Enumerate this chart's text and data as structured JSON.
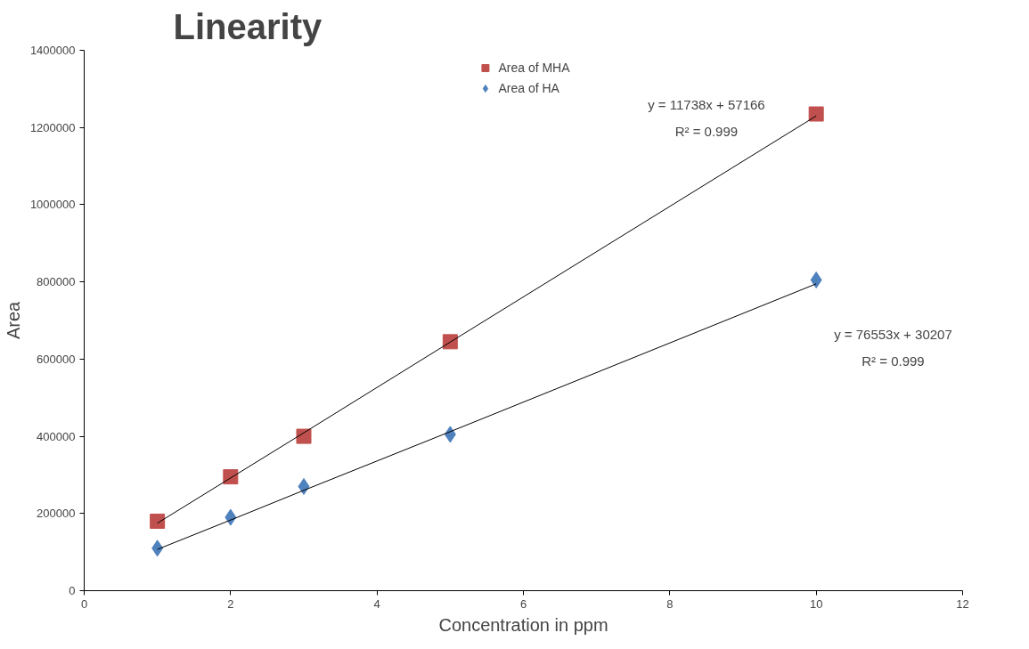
{
  "chart_data": {
    "type": "scatter",
    "title": "Linearity",
    "xlabel": "Concentration in ppm",
    "ylabel": "Area",
    "x": [
      1,
      2,
      3,
      5,
      10
    ],
    "series": [
      {
        "name": "Area of MHA",
        "color": "#c0504d",
        "marker": "square",
        "values": [
          180000,
          295000,
          400000,
          645000,
          1235000
        ]
      },
      {
        "name": "Area of HA",
        "color": "#4f81bd",
        "marker": "diamond",
        "values": [
          110000,
          190000,
          270000,
          405000,
          805000
        ]
      },
      {
        "type": "line",
        "color": "#000000",
        "values": [
          175000,
          292000,
          409000,
          644000,
          1230000
        ]
      },
      {
        "type": "line",
        "color": "#000000",
        "values": [
          107000,
          183000,
          260000,
          412000,
          795000
        ]
      }
    ],
    "annotations": [
      "y = 11738x + 57166",
      "R² = 0.999",
      "y = 76553x + 30207",
      "R² = 0.999"
    ],
    "xlim": [
      0,
      12
    ],
    "xticks": [
      0,
      2,
      4,
      6,
      8,
      10,
      12
    ],
    "ylim": [
      0,
      1400000
    ],
    "yticks": [
      0,
      200000,
      400000,
      600000,
      800000,
      1000000,
      1200000,
      1400000
    ],
    "grid": false,
    "legend": "top"
  }
}
